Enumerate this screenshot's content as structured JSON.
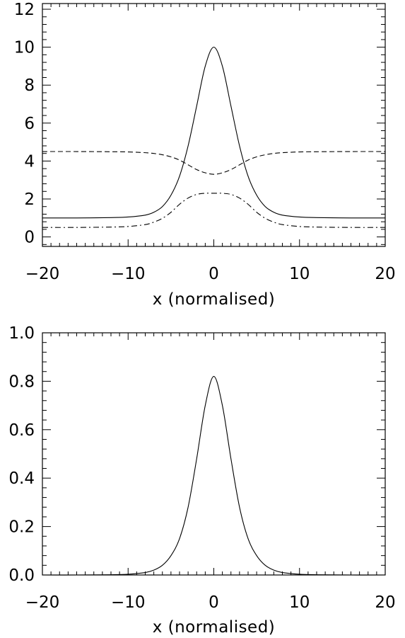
{
  "chart_data": [
    {
      "type": "line",
      "xlabel": "x (normalised)",
      "ylabel": "",
      "xlim": [
        -20,
        20
      ],
      "ylim": [
        -0.5,
        12.3
      ],
      "xticks": [
        -20,
        -10,
        0,
        10,
        20
      ],
      "xtick_labels": [
        "−20",
        "−10",
        "0",
        "10",
        "20"
      ],
      "yticks": [
        0,
        2,
        4,
        6,
        8,
        10,
        12
      ],
      "ytick_labels": [
        "0",
        "2",
        "4",
        "6",
        "8",
        "10",
        "12"
      ],
      "grid": false,
      "series": [
        {
          "line_style": "solid",
          "x": [
            -20,
            -16,
            -12,
            -10,
            -8,
            -7,
            -6,
            -5,
            -4,
            -3,
            -2,
            -1,
            0,
            1,
            2,
            3,
            4,
            5,
            6,
            7,
            8,
            10,
            12,
            16,
            20
          ],
          "values": [
            1.0,
            1.0,
            1.02,
            1.05,
            1.15,
            1.3,
            1.6,
            2.2,
            3.2,
            4.8,
            6.9,
            9.0,
            10.0,
            9.0,
            6.9,
            4.8,
            3.2,
            2.2,
            1.6,
            1.3,
            1.15,
            1.05,
            1.02,
            1.0,
            1.0
          ]
        },
        {
          "line_style": "dashed",
          "x": [
            -20,
            -16,
            -12,
            -10,
            -8,
            -7,
            -6,
            -5,
            -4,
            -3,
            -2,
            -1,
            0,
            1,
            2,
            3,
            4,
            5,
            6,
            7,
            8,
            10,
            12,
            16,
            20
          ],
          "values": [
            4.5,
            4.5,
            4.49,
            4.48,
            4.44,
            4.4,
            4.33,
            4.22,
            4.05,
            3.8,
            3.55,
            3.38,
            3.3,
            3.38,
            3.55,
            3.8,
            4.05,
            4.22,
            4.33,
            4.4,
            4.44,
            4.48,
            4.49,
            4.5,
            4.5
          ]
        },
        {
          "line_style": "dashdot",
          "x": [
            -20,
            -16,
            -12,
            -10,
            -8,
            -7,
            -6,
            -5,
            -4,
            -3,
            -2,
            -1,
            0,
            1,
            2,
            3,
            4,
            5,
            6,
            7,
            8,
            10,
            12,
            16,
            20
          ],
          "values": [
            0.5,
            0.5,
            0.52,
            0.55,
            0.65,
            0.78,
            0.98,
            1.3,
            1.72,
            2.05,
            2.24,
            2.3,
            2.3,
            2.3,
            2.24,
            2.05,
            1.72,
            1.3,
            0.98,
            0.78,
            0.65,
            0.55,
            0.52,
            0.5,
            0.5
          ]
        }
      ]
    },
    {
      "type": "line",
      "xlabel": "x (normalised)",
      "ylabel": "",
      "xlim": [
        -20,
        20
      ],
      "ylim": [
        0,
        1.0
      ],
      "xticks": [
        -20,
        -10,
        0,
        10,
        20
      ],
      "xtick_labels": [
        "−20",
        "−10",
        "0",
        "10",
        "20"
      ],
      "yticks": [
        0.0,
        0.2,
        0.4,
        0.6,
        0.8,
        1.0
      ],
      "ytick_labels": [
        "0.0",
        "0.2",
        "0.4",
        "0.6",
        "0.8",
        "1.0"
      ],
      "grid": false,
      "series": [
        {
          "line_style": "solid",
          "x": [
            -20,
            -16,
            -12,
            -10,
            -8,
            -7,
            -6,
            -5,
            -4,
            -3,
            -2,
            -1,
            0,
            1,
            2,
            3,
            4,
            5,
            6,
            7,
            8,
            10,
            12,
            16,
            20
          ],
          "values": [
            0.0,
            0.0,
            0.001,
            0.003,
            0.01,
            0.02,
            0.04,
            0.08,
            0.15,
            0.28,
            0.48,
            0.7,
            0.82,
            0.7,
            0.48,
            0.28,
            0.15,
            0.08,
            0.04,
            0.02,
            0.01,
            0.003,
            0.001,
            0.0,
            0.0
          ]
        }
      ]
    }
  ]
}
